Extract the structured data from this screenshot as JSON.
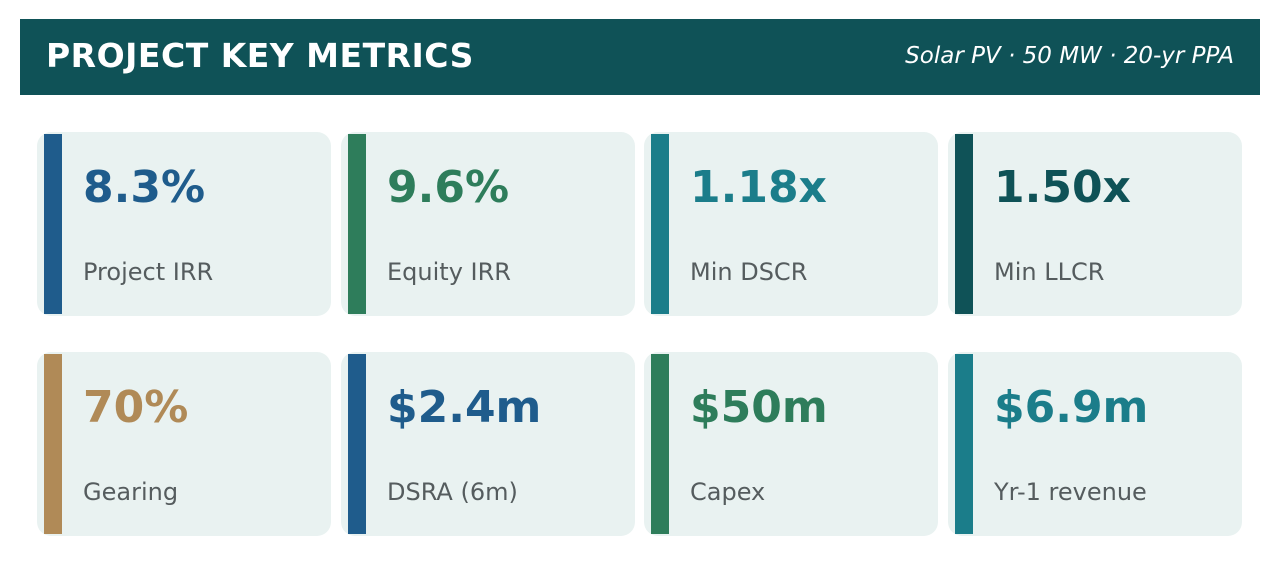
{
  "header": {
    "title": "PROJECT KEY METRICS",
    "subtitle": "Solar PV · 50 MW · 20-yr PPA"
  },
  "colors": {
    "header_bg": "#0f5257",
    "card_bg": "#e9f2f1",
    "label_text": "#555c5e",
    "blue": "#1f5c8c",
    "green": "#2e7d5b",
    "teal": "#1b7d8a",
    "dark_teal": "#0f5257",
    "tan": "#b08a57"
  },
  "metrics": [
    {
      "value": "8.3%",
      "label": "Project IRR",
      "color": "#1f5c8c"
    },
    {
      "value": "9.6%",
      "label": "Equity IRR",
      "color": "#2e7d5b"
    },
    {
      "value": "1.18x",
      "label": "Min DSCR",
      "color": "#1b7d8a"
    },
    {
      "value": "1.50x",
      "label": "Min LLCR",
      "color": "#0f5257"
    },
    {
      "value": "70%",
      "label": "Gearing",
      "color": "#b08a57"
    },
    {
      "value": "$2.4m",
      "label": "DSRA (6m)",
      "color": "#1f5c8c"
    },
    {
      "value": "$50m",
      "label": "Capex",
      "color": "#2e7d5b"
    },
    {
      "value": "$6.9m",
      "label": "Yr-1 revenue",
      "color": "#1b7d8a"
    }
  ]
}
